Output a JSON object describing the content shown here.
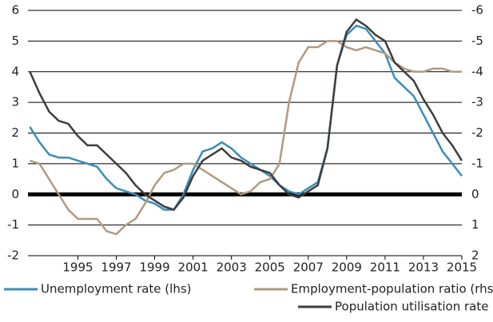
{
  "chart_data": {
    "type": "line",
    "x": [
      1992.5,
      1993,
      1993.5,
      1994,
      1994.5,
      1995,
      1995.5,
      1996,
      1996.5,
      1997,
      1997.5,
      1998,
      1998.5,
      1999,
      1999.5,
      2000,
      2000.5,
      2001,
      2001.5,
      2002,
      2002.5,
      2003,
      2003.5,
      2004,
      2004.5,
      2005,
      2005.5,
      2006,
      2006.5,
      2007,
      2007.5,
      2008,
      2008.5,
      2009,
      2009.5,
      2010,
      2010.5,
      2011,
      2011.5,
      2012,
      2012.5,
      2013,
      2013.5,
      2014,
      2014.5,
      2015
    ],
    "xlim": [
      1992.4,
      2015
    ],
    "xticks": [
      1995,
      1997,
      1999,
      2001,
      2003,
      2005,
      2007,
      2009,
      2011,
      2013,
      2015
    ],
    "ylim": [
      -2,
      6
    ],
    "yticks": [
      -2,
      -1,
      0,
      1,
      2,
      3,
      4,
      5,
      6
    ],
    "y2lim": [
      2,
      -6
    ],
    "y2ticks": [
      2,
      1,
      0,
      -1,
      -2,
      -3,
      -4,
      -5,
      -6
    ],
    "grid": true,
    "series": [
      {
        "name": "Unemployment rate (lhs)",
        "color": "#3a8db8",
        "axis": "y",
        "values": [
          2.2,
          1.7,
          1.3,
          1.2,
          1.2,
          1.1,
          1.0,
          0.9,
          0.5,
          0.2,
          0.1,
          0.0,
          -0.2,
          -0.3,
          -0.5,
          -0.5,
          0.0,
          0.8,
          1.4,
          1.5,
          1.7,
          1.5,
          1.2,
          1.0,
          0.8,
          0.6,
          0.3,
          0.1,
          0.0,
          0.2,
          0.4,
          1.5,
          4.2,
          5.2,
          5.5,
          5.4,
          5.0,
          4.6,
          3.8,
          3.5,
          3.2,
          2.6,
          2.0,
          1.4,
          1.0,
          0.6
        ]
      },
      {
        "name": "Employment-population ratio (rhs)",
        "color": "#b09a80",
        "axis": "y2",
        "values": [
          -1.1,
          -1.0,
          -0.5,
          0.0,
          0.5,
          0.8,
          0.8,
          0.8,
          1.2,
          1.3,
          1.0,
          0.8,
          0.3,
          -0.3,
          -0.7,
          -0.8,
          -1.0,
          -1.0,
          -0.8,
          -0.6,
          -0.4,
          -0.2,
          0.0,
          -0.1,
          -0.4,
          -0.5,
          -1.0,
          -3.0,
          -4.3,
          -4.8,
          -4.8,
          -5.0,
          -5.0,
          -4.8,
          -4.7,
          -4.8,
          -4.7,
          -4.6,
          -4.3,
          -4.1,
          -4.0,
          -4.0,
          -4.1,
          -4.1,
          -4.0,
          -4.0
        ]
      },
      {
        "name": "Population utilisation rate (rhs)",
        "color": "#3d3d3d",
        "axis": "y2",
        "values": [
          -4.0,
          -3.3,
          -2.7,
          -2.4,
          -2.3,
          -1.9,
          -1.6,
          -1.6,
          -1.3,
          -1.0,
          -0.7,
          -0.3,
          0.0,
          0.2,
          0.4,
          0.5,
          0.1,
          -0.6,
          -1.1,
          -1.3,
          -1.5,
          -1.2,
          -1.1,
          -0.9,
          -0.8,
          -0.7,
          -0.3,
          0.0,
          0.1,
          -0.1,
          -0.3,
          -1.5,
          -4.2,
          -5.3,
          -5.7,
          -5.5,
          -5.2,
          -5.0,
          -4.3,
          -4.0,
          -3.7,
          -3.1,
          -2.6,
          -2.0,
          -1.6,
          -1.1
        ]
      }
    ]
  }
}
